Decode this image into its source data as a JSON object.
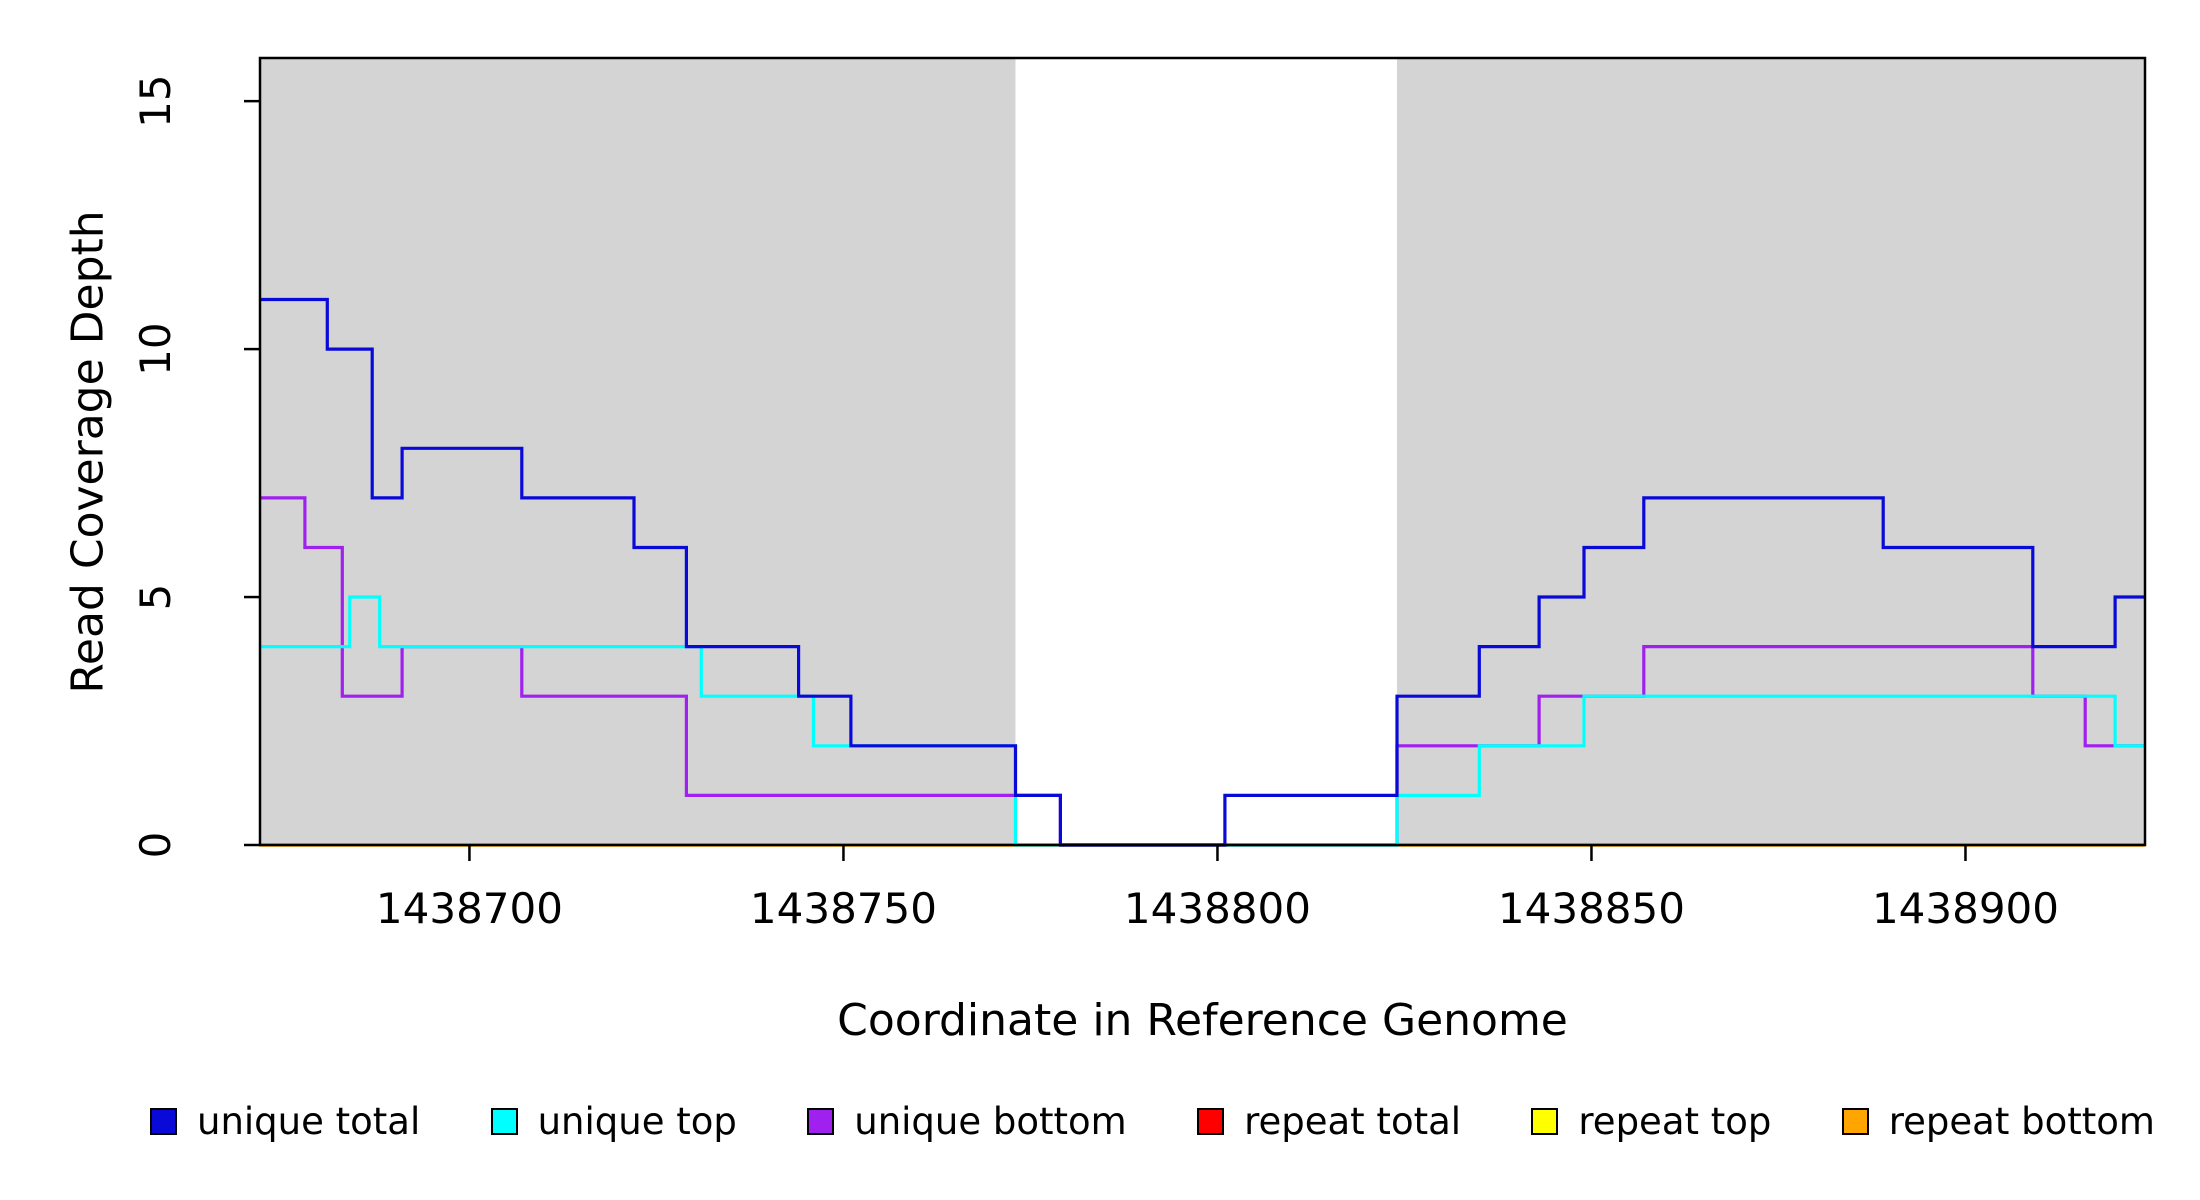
{
  "chart_data": {
    "type": "line",
    "subtype": "step",
    "title": "",
    "xlabel": "Coordinate in Reference Genome",
    "ylabel": "Read Coverage Depth",
    "x_range": [
      1438672,
      1438924
    ],
    "y_range": [
      0,
      15.87
    ],
    "x_ticks": [
      1438700,
      1438750,
      1438800,
      1438850,
      1438900
    ],
    "y_ticks": [
      0,
      5,
      10,
      15
    ],
    "grid": false,
    "shade_color": "#d4d4d4",
    "shaded_regions": [
      [
        1438672,
        1438773
      ],
      [
        1438824,
        1438924
      ]
    ],
    "series": [
      {
        "name": "repeat total",
        "color": "#ff0000",
        "points": [
          [
            1438672,
            0
          ]
        ]
      },
      {
        "name": "repeat top",
        "color": "#ffff00",
        "points": [
          [
            1438672,
            0
          ]
        ]
      },
      {
        "name": "repeat bottom",
        "color": "#ffa500",
        "points": [
          [
            1438672,
            0
          ]
        ]
      },
      {
        "name": "unique bottom",
        "color": "#a020f0",
        "points": [
          [
            1438672,
            7
          ],
          [
            1438678,
            6
          ],
          [
            1438683,
            3
          ],
          [
            1438691,
            4
          ],
          [
            1438707,
            3
          ],
          [
            1438729,
            1
          ],
          [
            1438779,
            0
          ],
          [
            1438824,
            2
          ],
          [
            1438843,
            3
          ],
          [
            1438857,
            4
          ],
          [
            1438909,
            3
          ],
          [
            1438916,
            2
          ]
        ]
      },
      {
        "name": "unique top",
        "color": "#00ffff",
        "points": [
          [
            1438672,
            4
          ],
          [
            1438684,
            5
          ],
          [
            1438688,
            4
          ],
          [
            1438731,
            3
          ],
          [
            1438746,
            2
          ],
          [
            1438773,
            0
          ],
          [
            1438824,
            1
          ],
          [
            1438835,
            2
          ],
          [
            1438849,
            3
          ],
          [
            1438920,
            2
          ]
        ]
      },
      {
        "name": "unique total",
        "color": "#0a0ad8",
        "points": [
          [
            1438672,
            11
          ],
          [
            1438681,
            10
          ],
          [
            1438687,
            7
          ],
          [
            1438691,
            8
          ],
          [
            1438707,
            7
          ],
          [
            1438722,
            6
          ],
          [
            1438729,
            4
          ],
          [
            1438744,
            3
          ],
          [
            1438751,
            2
          ],
          [
            1438773,
            1
          ],
          [
            1438779,
            0
          ],
          [
            1438801,
            1
          ],
          [
            1438824,
            3
          ],
          [
            1438835,
            4
          ],
          [
            1438843,
            5
          ],
          [
            1438849,
            6
          ],
          [
            1438857,
            7
          ],
          [
            1438889,
            6
          ],
          [
            1438909,
            4
          ],
          [
            1438920,
            5
          ]
        ]
      }
    ],
    "legend": [
      {
        "label": "unique total",
        "color": "#0a0ad8"
      },
      {
        "label": "unique top",
        "color": "#00ffff"
      },
      {
        "label": "unique bottom",
        "color": "#a020f0"
      },
      {
        "label": "repeat total",
        "color": "#ff0000"
      },
      {
        "label": "repeat top",
        "color": "#ffff00"
      },
      {
        "label": "repeat bottom",
        "color": "#ffa500"
      }
    ],
    "legend_position": "bottom"
  }
}
